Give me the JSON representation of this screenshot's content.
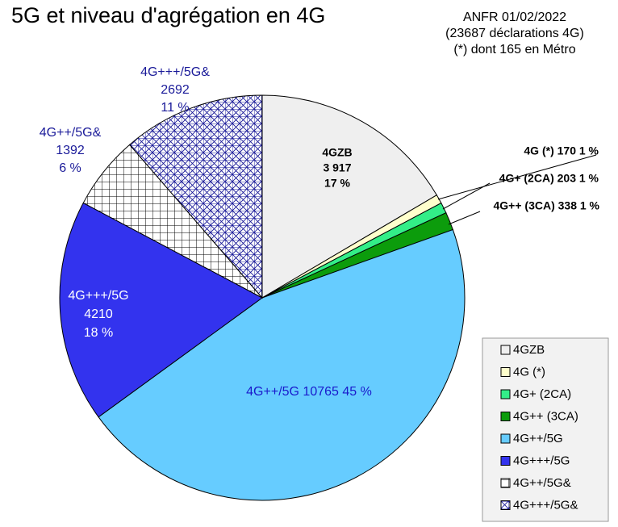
{
  "title": "5G et niveau d'agrégation en 4G",
  "source_lines": [
    "ANFR 01/02/2022",
    "(23687 déclarations 4G)",
    "(*) dont 165 en Métro"
  ],
  "chart_data": {
    "type": "pie",
    "title": "5G et niveau d'agrégation en 4G",
    "legend_position": "bottom-right",
    "slices": [
      {
        "name": "4GZB",
        "value": 3917,
        "value_label": "3 917",
        "percent_label": "17 %",
        "color": "#efefef",
        "pattern": "none"
      },
      {
        "name": "4G (*)",
        "value": 170,
        "value_label": "170",
        "percent_label": "1 %",
        "color": "#ffffcc",
        "pattern": "none"
      },
      {
        "name": "4G+ (2CA)",
        "value": 203,
        "value_label": "203",
        "percent_label": "1 %",
        "color": "#33ee88",
        "pattern": "none"
      },
      {
        "name": "4G++ (3CA)",
        "value": 338,
        "value_label": "338",
        "percent_label": "1 %",
        "color": "#0c9c0c",
        "pattern": "none"
      },
      {
        "name": "4G++/5G",
        "value": 10765,
        "value_label": "10765",
        "percent_label": "45 %",
        "color": "#66ccff",
        "pattern": "none"
      },
      {
        "name": "4G+++/5G",
        "value": 4210,
        "value_label": "4210",
        "percent_label": "18 %",
        "color": "#3333ee",
        "pattern": "none"
      },
      {
        "name": "4G++/5G&",
        "value": 1392,
        "value_label": "1392",
        "percent_label": "6 %",
        "color": "#ffffff",
        "pattern": "grid"
      },
      {
        "name": "4G+++/5G&",
        "value": 2692,
        "value_label": "2692",
        "percent_label": "11 %",
        "color": "#ffffff",
        "pattern": "crosshatch"
      }
    ]
  }
}
